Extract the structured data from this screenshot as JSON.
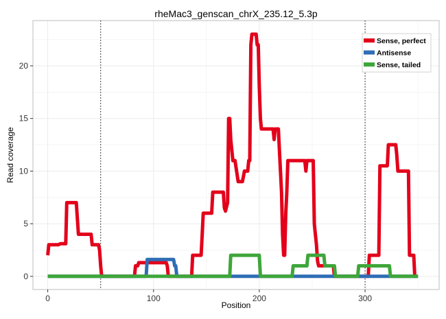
{
  "chart_data": {
    "type": "line",
    "title": "rheMac3_genscan_chrX_235.12_5.3p",
    "xlabel": "Position",
    "ylabel": "Read coverage",
    "xlim": [
      -14,
      370
    ],
    "ylim": [
      -1.25,
      24.3
    ],
    "xticks": [
      0,
      100,
      200,
      300
    ],
    "yticks": [
      0,
      5,
      10,
      15,
      20
    ],
    "grid": true,
    "vlines": [
      50,
      300
    ],
    "legend_position": "top-right",
    "series": [
      {
        "name": "Sense, perfect",
        "color": "#e3001b",
        "x": [
          0,
          1,
          10,
          12,
          15,
          17,
          18,
          27,
          29,
          41,
          42,
          48,
          49,
          50,
          51,
          82,
          83,
          85,
          86,
          112,
          113,
          114,
          136,
          137,
          145,
          146,
          147,
          155,
          156,
          166,
          167,
          168,
          170,
          171,
          172,
          173,
          175,
          176,
          177,
          180,
          181,
          184,
          186,
          187,
          189,
          190,
          191,
          192,
          193,
          194,
          197,
          198,
          199,
          200,
          201,
          202,
          213,
          214,
          215,
          218,
          219,
          221,
          222,
          223,
          224,
          225,
          226,
          227,
          228,
          229,
          243,
          244,
          245,
          246,
          251,
          252,
          253,
          254,
          255,
          256,
          270,
          271,
          303,
          304,
          313,
          314,
          321,
          322,
          329,
          330,
          331,
          333,
          341,
          342,
          346,
          347,
          348
        ],
        "y": [
          2,
          3,
          3,
          3.1,
          3.1,
          3.1,
          7,
          7,
          4,
          4,
          3,
          3,
          2.5,
          1,
          0,
          0,
          1,
          1,
          1.3,
          1.3,
          1,
          0,
          0,
          2,
          2,
          4,
          6,
          6,
          8,
          8,
          6.5,
          6.2,
          7,
          15,
          15,
          13,
          11,
          11,
          11,
          9,
          9,
          9,
          10,
          10,
          10,
          11,
          11,
          22,
          23,
          23,
          23,
          22,
          22,
          18,
          15,
          14,
          14,
          13,
          14,
          14,
          12,
          8,
          4,
          2,
          2,
          6,
          8,
          11,
          11,
          11,
          11,
          10,
          11,
          11,
          11,
          5,
          4,
          3,
          1.5,
          1,
          1,
          0,
          0,
          2,
          2,
          10.5,
          10.5,
          12.5,
          12.5,
          11.5,
          10,
          10,
          10,
          2,
          2,
          0,
          0
        ]
      },
      {
        "name": "Antisense",
        "color": "#2f6db5",
        "x": [
          0,
          93,
          94,
          119,
          120,
          121,
          122,
          350
        ],
        "y": [
          0,
          0,
          1.6,
          1.6,
          1,
          1,
          0,
          0
        ]
      },
      {
        "name": "Sense, tailed",
        "color": "#3ea63a",
        "x": [
          0,
          172,
          173,
          200,
          201,
          231,
          232,
          245,
          246,
          261,
          262,
          271,
          272,
          293,
          294,
          323,
          324,
          350
        ],
        "y": [
          0,
          0,
          2,
          2,
          0,
          0,
          1,
          1,
          2,
          2,
          1,
          1,
          0,
          0,
          1,
          1,
          0,
          0
        ]
      }
    ]
  }
}
